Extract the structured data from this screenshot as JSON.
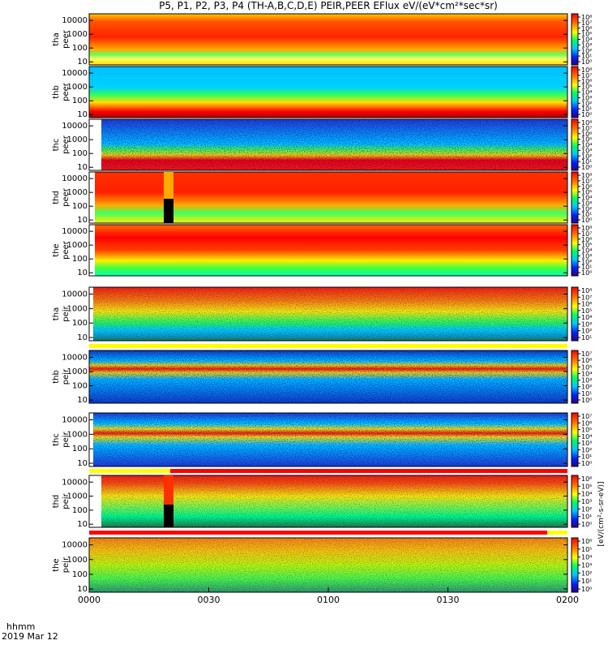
{
  "title": "P5, P1, P2, P3, P4 (TH-A,B,C,D,E) PEIR,PEER EFlux eV/(eV*cm²*sec*sr)",
  "footer": {
    "time_label": "hhmm",
    "date_label": "2019 Mar 12"
  },
  "colorbar_unit_label": "[eV/(cm²-s-sr-eV)]",
  "colors": {
    "high": "#ff0000",
    "mid": "#ffff00",
    "low_mid": "#00c000",
    "low": "#00c8ff",
    "min": "#000090"
  },
  "chart_data": {
    "type": "heatmap",
    "xlabel": "",
    "x_ticks": [
      "0000",
      "0030",
      "0100",
      "0130",
      "0200"
    ],
    "x_range_minutes": [
      0,
      120
    ],
    "y_scale": "log",
    "y_ticks": [
      "10",
      "100",
      "1000",
      "10000"
    ],
    "panels": [
      {
        "ylabel": [
          "tha",
          "peer"
        ],
        "cbar_ticks": [
          "10⁸",
          "10⁷",
          "10⁶",
          "10⁵",
          "10⁴",
          "10³",
          "10²",
          "10¹",
          "10⁰"
        ],
        "profile": [
          [
            0,
            "#ffdd00"
          ],
          [
            0.12,
            "#ffff60"
          ],
          [
            0.2,
            "#60ff60"
          ],
          [
            0.3,
            "#ffaa00"
          ],
          [
            0.55,
            "#ff2200"
          ],
          [
            0.85,
            "#ff5500"
          ],
          [
            1,
            "#ffcc00"
          ]
        ]
      },
      {
        "ylabel": [
          "thb",
          "peer"
        ],
        "cbar_ticks": [
          "10⁸",
          "10⁷",
          "10⁶",
          "10⁵",
          "10⁴",
          "10³",
          "10²",
          "10¹",
          "10⁰"
        ],
        "profile": [
          [
            0,
            "#aa0000"
          ],
          [
            0.12,
            "#ff0000"
          ],
          [
            0.3,
            "#ffdd00"
          ],
          [
            0.45,
            "#30ff60"
          ],
          [
            0.6,
            "#00d0ff"
          ],
          [
            1,
            "#00c0ff"
          ]
        ]
      },
      {
        "ylabel": [
          "thc",
          "peer"
        ],
        "cbar_ticks": [
          "10⁸",
          "10⁷",
          "10⁶",
          "10⁵",
          "10⁴",
          "10³",
          "10²",
          "10¹",
          "10⁰"
        ],
        "profile": [
          [
            0,
            "#ff2000"
          ],
          [
            0.2,
            "#ff0000"
          ],
          [
            0.3,
            "#ffdd00"
          ],
          [
            0.4,
            "#50ff40"
          ],
          [
            0.52,
            "#00c8ff"
          ],
          [
            1,
            "#2040d0"
          ]
        ]
      },
      {
        "ylabel": [
          "thd",
          "peer"
        ],
        "cbar_ticks": [
          "10⁸",
          "10⁷",
          "10⁶",
          "10⁵",
          "10⁴",
          "10³",
          "10²",
          "10¹",
          "10⁰"
        ],
        "profile": [
          [
            0,
            "#ffee00"
          ],
          [
            0.2,
            "#40ff60"
          ],
          [
            0.35,
            "#ffaa00"
          ],
          [
            0.6,
            "#ff2000"
          ],
          [
            1,
            "#ff3000"
          ]
        ]
      },
      {
        "ylabel": [
          "the",
          "peer"
        ],
        "cbar_ticks": [
          "10⁸",
          "10⁷",
          "10⁶",
          "10⁵",
          "10⁴",
          "10³",
          "10²",
          "10¹",
          "10⁰"
        ],
        "profile": [
          [
            0,
            "#00ffb0"
          ],
          [
            0.15,
            "#40ff40"
          ],
          [
            0.3,
            "#ffee00"
          ],
          [
            0.5,
            "#ff4000"
          ],
          [
            0.75,
            "#ff0000"
          ],
          [
            1,
            "#ff6a00"
          ]
        ]
      },
      {
        "ylabel": [
          "tha",
          "peir"
        ],
        "cbar_ticks": [
          "10⁸",
          "10⁷",
          "10⁶",
          "10⁵",
          "10⁴",
          "10³",
          "10²",
          "10¹"
        ],
        "profile": [
          [
            0,
            "#1a8060"
          ],
          [
            0.18,
            "#00c8ff"
          ],
          [
            0.35,
            "#30ff50"
          ],
          [
            0.55,
            "#ffee00"
          ],
          [
            0.75,
            "#ff8000"
          ],
          [
            1,
            "#ff2000"
          ]
        ]
      },
      {
        "ylabel": [
          "thb",
          "peir"
        ],
        "cbar_ticks": [
          "10⁷",
          "10⁶",
          "10⁵",
          "10⁴",
          "10³",
          "10²",
          "10¹",
          "10⁰"
        ],
        "profile": [
          [
            0,
            "#1040c0"
          ],
          [
            0.45,
            "#00c0ff"
          ],
          [
            0.58,
            "#ffdd00"
          ],
          [
            0.65,
            "#ff2000"
          ],
          [
            0.72,
            "#ffdd00"
          ],
          [
            0.8,
            "#00c8ff"
          ],
          [
            1,
            "#1040c0"
          ]
        ]
      },
      {
        "ylabel": [
          "thc",
          "peir"
        ],
        "cbar_ticks": [
          "10⁷",
          "10⁶",
          "10⁵",
          "10⁴",
          "10³",
          "10²",
          "10¹",
          "10⁰"
        ],
        "profile": [
          [
            0,
            "#2040d0"
          ],
          [
            0.4,
            "#00c8ff"
          ],
          [
            0.55,
            "#ffee00"
          ],
          [
            0.62,
            "#ff2000"
          ],
          [
            0.7,
            "#ffee00"
          ],
          [
            0.8,
            "#00d0ff"
          ],
          [
            1,
            "#2040d0"
          ]
        ]
      },
      {
        "ylabel": [
          "thd",
          "peir"
        ],
        "cbar_ticks": [
          "10⁶",
          "10⁵",
          "10⁴",
          "10³",
          "10²",
          "10¹",
          "10⁰"
        ],
        "profile": [
          [
            0,
            "#208040"
          ],
          [
            0.2,
            "#00ff80"
          ],
          [
            0.4,
            "#80ff40"
          ],
          [
            0.6,
            "#ffee00"
          ],
          [
            0.85,
            "#ff5000"
          ],
          [
            1,
            "#ff2000"
          ]
        ]
      },
      {
        "ylabel": [
          "the",
          "peir"
        ],
        "cbar_ticks": [
          "10⁶",
          "10⁵",
          "10⁴",
          "10³",
          "10²",
          "10¹",
          "10⁰"
        ],
        "profile": [
          [
            0,
            "#30a060"
          ],
          [
            0.25,
            "#50ff40"
          ],
          [
            0.5,
            "#c0ff00"
          ],
          [
            0.75,
            "#ffcc00"
          ],
          [
            1,
            "#ff8a00"
          ]
        ]
      }
    ]
  }
}
